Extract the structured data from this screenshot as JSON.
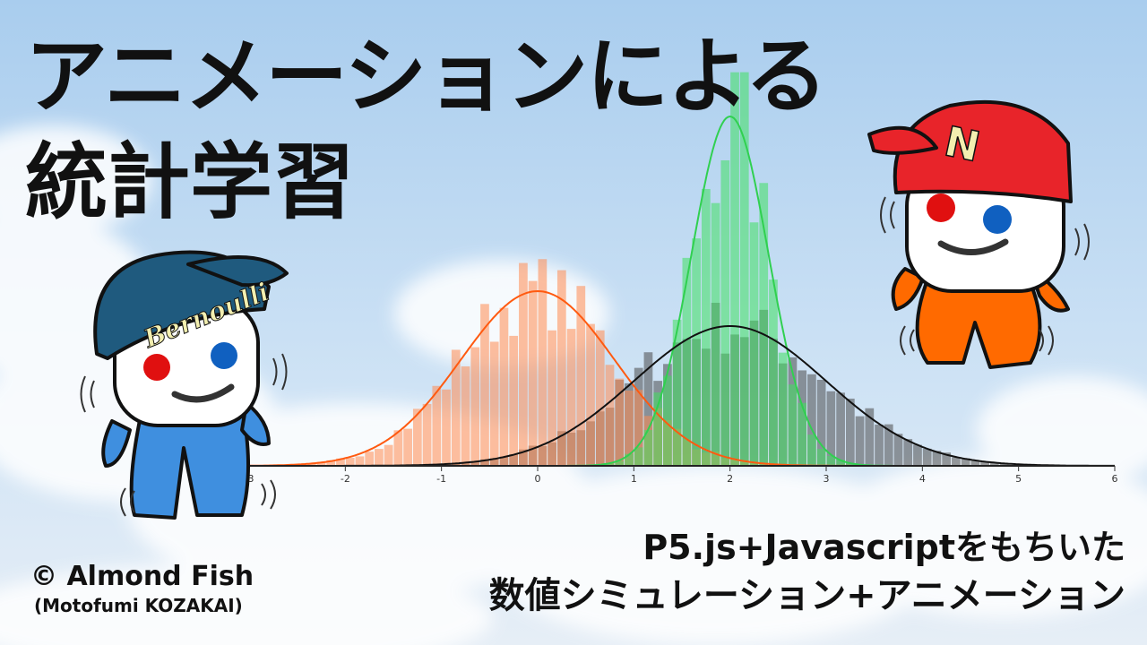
{
  "title_line1": "アニメーションによる",
  "title_line2": "統計学習",
  "subtitle_line1": "P5.js+Javascriptをもちいた",
  "subtitle_line2": "数値シミュレーション+アニメーション",
  "copyright": "© Almond Fish",
  "author": "(Motofumi KOZAKAI)",
  "characters": [
    {
      "name": "bernoulli",
      "cap_text": "Bernoulli",
      "cap_color": "#1f5a7e",
      "body_color": "#3f8fdf"
    },
    {
      "name": "n-character",
      "cap_text": "N",
      "cap_color": "#e8242a",
      "body_color": "#ff6a00"
    }
  ],
  "colors": {
    "sky": "#bcd9f2",
    "orange": "#ff8a50",
    "green": "#40e060",
    "gray": "#5a5a5a"
  },
  "chart_data": {
    "type": "bar",
    "x_ticks": [
      "-3",
      "-2",
      "-1",
      "0",
      "1",
      "2",
      "3",
      "4",
      "5",
      "6"
    ],
    "xlim": [
      -3,
      6
    ],
    "series": [
      {
        "mean": 0,
        "sd": 0.8,
        "color": "orange"
      },
      {
        "mean": 2,
        "sd": 0.4,
        "color": "green"
      },
      {
        "mean": 2,
        "sd": 1.0,
        "color": "gray"
      }
    ]
  }
}
